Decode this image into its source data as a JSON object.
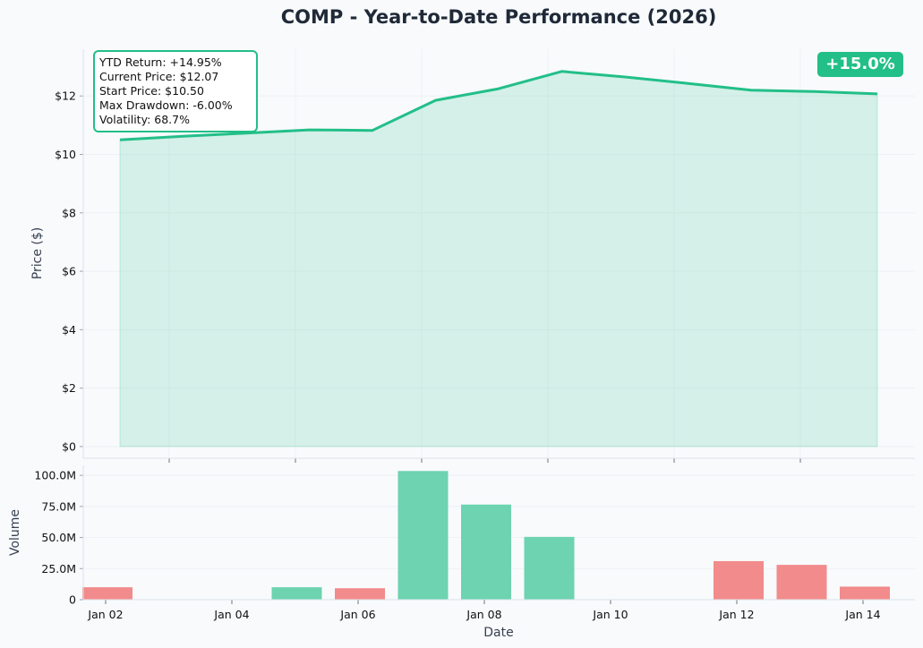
{
  "chart_data": [
    {
      "type": "area",
      "title": "COMP - Year-to-Date Performance (2026)",
      "ylabel": "Price ($)",
      "ylim": [
        -0.4,
        13.6
      ],
      "y_ticks": [
        0,
        2,
        4,
        6,
        8,
        10,
        12
      ],
      "y_tick_labels": [
        "$0",
        "$2",
        "$4",
        "$6",
        "$8",
        "$10",
        "$12"
      ],
      "grid": true,
      "series": [
        {
          "x": [
            "2026-01-02",
            "2026-01-03",
            "2026-01-04",
            "2026-01-05",
            "2026-01-06",
            "2026-01-07",
            "2026-01-08",
            "2026-01-09",
            "2026-01-10",
            "2026-01-11",
            "2026-01-12",
            "2026-01-13",
            "2026-01-14"
          ],
          "values": [
            10.5,
            10.62,
            10.73,
            10.84,
            10.82,
            11.85,
            12.25,
            12.84,
            12.65,
            12.43,
            12.2,
            12.15,
            12.07
          ],
          "color": "#22bf88"
        }
      ],
      "stats": [
        "YTD Return: +14.95%",
        "Current Price: $12.07",
        "Start Price: $10.50",
        "Max Drawdown: -6.00%",
        "Volatility: 68.7%"
      ],
      "badge": "+15.0%"
    },
    {
      "type": "bar",
      "xlabel": "Date",
      "ylabel": "Volume",
      "ylim": [
        0,
        108000000
      ],
      "y_ticks": [
        0,
        25000000,
        50000000,
        75000000,
        100000000
      ],
      "y_tick_labels": [
        "0",
        "25.0M",
        "50.0M",
        "75.0M",
        "100.0M"
      ],
      "x_tick_labels": [
        "Jan 02",
        "Jan 04",
        "Jan 06",
        "Jan 08",
        "Jan 10",
        "Jan 12",
        "Jan 14"
      ],
      "grid": true,
      "x": [
        "2026-01-02",
        "2026-01-03",
        "2026-01-04",
        "2026-01-05",
        "2026-01-06",
        "2026-01-07",
        "2026-01-08",
        "2026-01-09",
        "2026-01-10",
        "2026-01-11",
        "2026-01-12",
        "2026-01-13",
        "2026-01-14"
      ],
      "values": [
        10000000,
        0,
        0,
        10000000,
        9200000,
        103500000,
        76500000,
        50500000,
        0,
        0,
        31000000,
        28000000,
        10500000
      ],
      "direction": [
        "down",
        "down",
        "down",
        "up",
        "down",
        "up",
        "up",
        "up",
        "up",
        "up",
        "down",
        "down",
        "down"
      ],
      "up_color": "#6dd3b0",
      "down_color": "#f28b8b"
    }
  ]
}
